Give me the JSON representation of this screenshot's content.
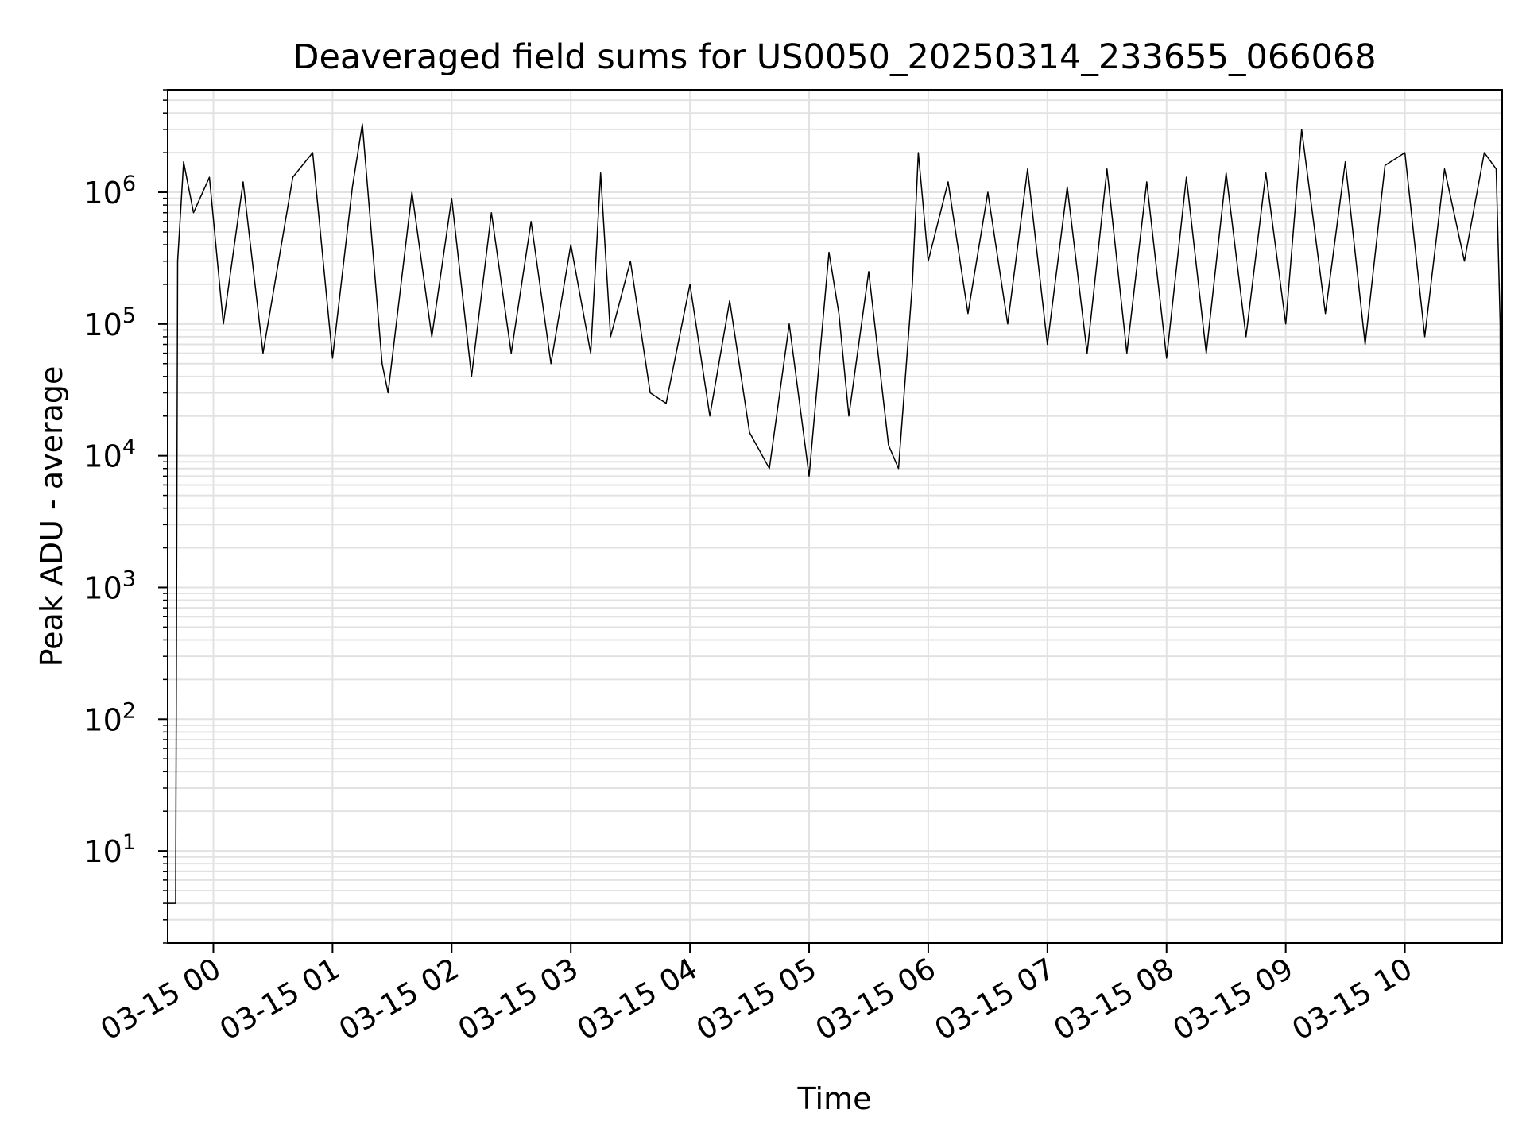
{
  "chart_data": {
    "type": "line",
    "title": "Deaveraged field sums for US0050_20250314_233655_066068",
    "xlabel": "Time",
    "ylabel": "Peak ADU - average",
    "yscale": "log",
    "ylim": [
      2,
      6000000
    ],
    "xlim": [
      "2025-03-14 23:37",
      "2025-03-15 10:49"
    ],
    "grid": true,
    "line_color": "#000000",
    "x_ticks": [
      {
        "at": "2025-03-15 00:00",
        "label": "03-15 00"
      },
      {
        "at": "2025-03-15 01:00",
        "label": "03-15 01"
      },
      {
        "at": "2025-03-15 02:00",
        "label": "03-15 02"
      },
      {
        "at": "2025-03-15 03:00",
        "label": "03-15 03"
      },
      {
        "at": "2025-03-15 04:00",
        "label": "03-15 04"
      },
      {
        "at": "2025-03-15 05:00",
        "label": "03-15 05"
      },
      {
        "at": "2025-03-15 06:00",
        "label": "03-15 06"
      },
      {
        "at": "2025-03-15 07:00",
        "label": "03-15 07"
      },
      {
        "at": "2025-03-15 08:00",
        "label": "03-15 08"
      },
      {
        "at": "2025-03-15 09:00",
        "label": "03-15 09"
      },
      {
        "at": "2025-03-15 10:00",
        "label": "03-15 10"
      }
    ],
    "y_ticks": [
      {
        "value": 10,
        "base": "10",
        "exp": "1"
      },
      {
        "value": 100,
        "base": "10",
        "exp": "2"
      },
      {
        "value": 1000,
        "base": "10",
        "exp": "3"
      },
      {
        "value": 10000,
        "base": "10",
        "exp": "4"
      },
      {
        "value": 100000,
        "base": "10",
        "exp": "5"
      },
      {
        "value": 1000000,
        "base": "10",
        "exp": "6"
      }
    ],
    "series": [
      {
        "points": [
          [
            "2025-03-14 23:37",
            4
          ],
          [
            "2025-03-14 23:41",
            4
          ],
          [
            "2025-03-14 23:42",
            300000
          ],
          [
            "2025-03-14 23:45",
            1700000
          ],
          [
            "2025-03-14 23:50",
            700000
          ],
          [
            "2025-03-14 23:58",
            1300000
          ],
          [
            "2025-03-15 00:05",
            100000
          ],
          [
            "2025-03-15 00:15",
            1200000
          ],
          [
            "2025-03-15 00:25",
            60000
          ],
          [
            "2025-03-15 00:40",
            1300000
          ],
          [
            "2025-03-15 00:50",
            2000000
          ],
          [
            "2025-03-15 01:00",
            55000
          ],
          [
            "2025-03-15 01:10",
            1100000
          ],
          [
            "2025-03-15 01:15",
            3300000
          ],
          [
            "2025-03-15 01:25",
            50000
          ],
          [
            "2025-03-15 01:28",
            30000
          ],
          [
            "2025-03-15 01:40",
            1000000
          ],
          [
            "2025-03-15 01:50",
            80000
          ],
          [
            "2025-03-15 02:00",
            900000
          ],
          [
            "2025-03-15 02:10",
            40000
          ],
          [
            "2025-03-15 02:20",
            700000
          ],
          [
            "2025-03-15 02:30",
            60000
          ],
          [
            "2025-03-15 02:40",
            600000
          ],
          [
            "2025-03-15 02:50",
            50000
          ],
          [
            "2025-03-15 03:00",
            400000
          ],
          [
            "2025-03-15 03:10",
            60000
          ],
          [
            "2025-03-15 03:15",
            1400000
          ],
          [
            "2025-03-15 03:20",
            80000
          ],
          [
            "2025-03-15 03:30",
            300000
          ],
          [
            "2025-03-15 03:40",
            30000
          ],
          [
            "2025-03-15 03:48",
            25000
          ],
          [
            "2025-03-15 04:00",
            200000
          ],
          [
            "2025-03-15 04:10",
            20000
          ],
          [
            "2025-03-15 04:20",
            150000
          ],
          [
            "2025-03-15 04:30",
            15000
          ],
          [
            "2025-03-15 04:40",
            8000
          ],
          [
            "2025-03-15 04:50",
            100000
          ],
          [
            "2025-03-15 05:00",
            7000
          ],
          [
            "2025-03-15 05:10",
            350000
          ],
          [
            "2025-03-15 05:15",
            120000
          ],
          [
            "2025-03-15 05:20",
            20000
          ],
          [
            "2025-03-15 05:30",
            250000
          ],
          [
            "2025-03-15 05:40",
            12000
          ],
          [
            "2025-03-15 05:45",
            8000
          ],
          [
            "2025-03-15 05:52",
            200000
          ],
          [
            "2025-03-15 05:55",
            2000000
          ],
          [
            "2025-03-15 06:00",
            300000
          ],
          [
            "2025-03-15 06:10",
            1200000
          ],
          [
            "2025-03-15 06:20",
            120000
          ],
          [
            "2025-03-15 06:30",
            1000000
          ],
          [
            "2025-03-15 06:40",
            100000
          ],
          [
            "2025-03-15 06:50",
            1500000
          ],
          [
            "2025-03-15 07:00",
            70000
          ],
          [
            "2025-03-15 07:10",
            1100000
          ],
          [
            "2025-03-15 07:20",
            60000
          ],
          [
            "2025-03-15 07:30",
            1500000
          ],
          [
            "2025-03-15 07:40",
            60000
          ],
          [
            "2025-03-15 07:50",
            1200000
          ],
          [
            "2025-03-15 08:00",
            55000
          ],
          [
            "2025-03-15 08:10",
            1300000
          ],
          [
            "2025-03-15 08:20",
            60000
          ],
          [
            "2025-03-15 08:30",
            1400000
          ],
          [
            "2025-03-15 08:40",
            80000
          ],
          [
            "2025-03-15 08:50",
            1400000
          ],
          [
            "2025-03-15 09:00",
            100000
          ],
          [
            "2025-03-15 09:08",
            3000000
          ],
          [
            "2025-03-15 09:20",
            120000
          ],
          [
            "2025-03-15 09:30",
            1700000
          ],
          [
            "2025-03-15 09:40",
            70000
          ],
          [
            "2025-03-15 09:50",
            1600000
          ],
          [
            "2025-03-15 10:00",
            2000000
          ],
          [
            "2025-03-15 10:10",
            80000
          ],
          [
            "2025-03-15 10:20",
            1500000
          ],
          [
            "2025-03-15 10:30",
            300000
          ],
          [
            "2025-03-15 10:40",
            2000000
          ],
          [
            "2025-03-15 10:46",
            1500000
          ],
          [
            "2025-03-15 10:48",
            100000
          ],
          [
            "2025-03-15 10:49",
            4
          ]
        ]
      }
    ]
  }
}
